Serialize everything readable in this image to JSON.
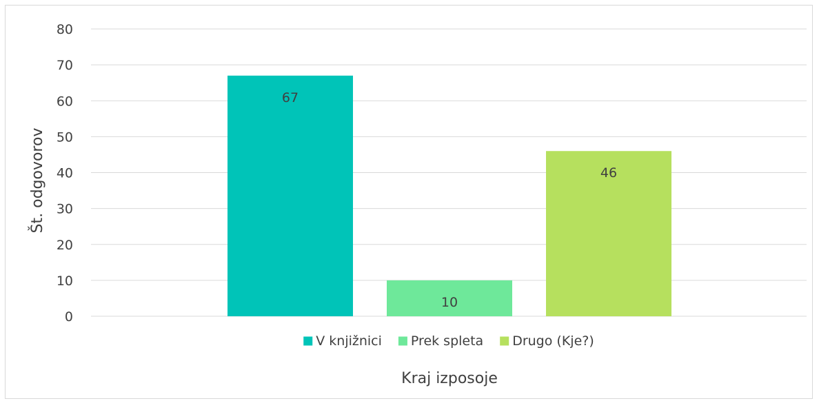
{
  "chart_data": {
    "type": "bar",
    "title": "",
    "xlabel": "Kraj izposoje",
    "ylabel": "Št. odgovorov",
    "ylim": [
      0,
      80
    ],
    "ytick_step": 10,
    "grid": true,
    "legend_position": "bottom",
    "series": [
      {
        "name": "V knjižnici",
        "value": 67,
        "color": "#00c4b8"
      },
      {
        "name": "Prek spleta",
        "value": 10,
        "color": "#6ee89a"
      },
      {
        "name": "Drugo (Kje?)",
        "value": 46,
        "color": "#b6e05e"
      }
    ]
  }
}
